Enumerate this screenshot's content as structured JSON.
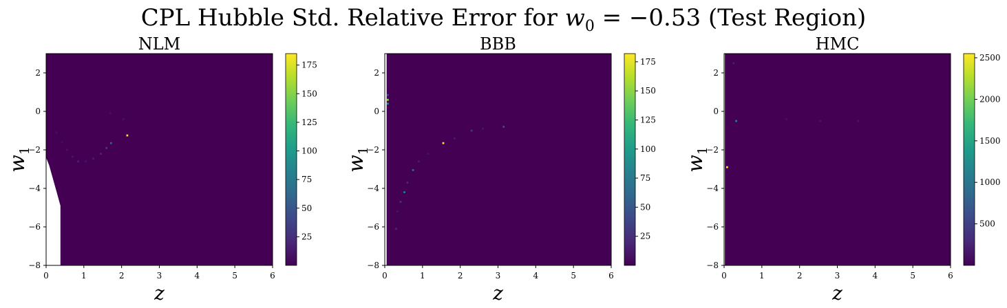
{
  "figure": {
    "title_prefix": "CPL Hubble Std. Relative Error for ",
    "title_var": "w",
    "title_sub": "0",
    "title_value": " = −0.53 ",
    "title_suffix": "(Test Region)"
  },
  "colors": {
    "background": "#440154",
    "viridis": [
      "#440154",
      "#482878",
      "#3e4989",
      "#31688e",
      "#26828e",
      "#1f9e89",
      "#35b779",
      "#6ece58",
      "#b5de2b",
      "#fde725"
    ]
  },
  "chart_data": [
    {
      "type": "heatmap",
      "title": "NLM",
      "xlabel": "z",
      "ylabel": "w1",
      "xlim": [
        0,
        6
      ],
      "ylim": [
        -8,
        3
      ],
      "xticks": [
        0,
        1,
        2,
        3,
        4,
        5,
        6
      ],
      "yticks": [
        -8,
        -6,
        -4,
        -2,
        0,
        2
      ],
      "colorbar": {
        "min": 0,
        "max": 185,
        "ticks": [
          25,
          50,
          75,
          100,
          125,
          150,
          175
        ]
      },
      "missing_region": [
        [
          0.0,
          -8.0
        ],
        [
          0.38,
          -8.0
        ],
        [
          0.38,
          -4.9
        ],
        [
          0.28,
          -4.2
        ],
        [
          0.18,
          -3.5
        ],
        [
          0.08,
          -2.8
        ],
        [
          0.0,
          -2.4
        ]
      ],
      "points": [
        {
          "z": 0.27,
          "w1": -1.1,
          "value": 8
        },
        {
          "z": 0.42,
          "w1": -1.6,
          "value": 6
        },
        {
          "z": 0.55,
          "w1": -2.0,
          "value": 10
        },
        {
          "z": 0.7,
          "w1": -2.35,
          "value": 12
        },
        {
          "z": 0.85,
          "w1": -2.6,
          "value": 18
        },
        {
          "z": 1.05,
          "w1": -2.6,
          "value": 10
        },
        {
          "z": 1.25,
          "w1": -2.45,
          "value": 14
        },
        {
          "z": 1.45,
          "w1": -2.2,
          "value": 20
        },
        {
          "z": 1.6,
          "w1": -1.9,
          "value": 35
        },
        {
          "z": 1.72,
          "w1": -1.65,
          "value": 60
        },
        {
          "z": 1.7,
          "w1": -0.1,
          "value": 8
        },
        {
          "z": 2.05,
          "w1": -0.4,
          "value": 10
        },
        {
          "z": 2.15,
          "w1": -1.25,
          "value": 182
        }
      ]
    },
    {
      "type": "heatmap",
      "title": "BBB",
      "xlabel": "z",
      "ylabel": "w1",
      "xlim": [
        0,
        6
      ],
      "ylim": [
        -8,
        3
      ],
      "xticks": [
        0,
        1,
        2,
        3,
        4,
        5,
        6
      ],
      "yticks": [
        -8,
        -6,
        -4,
        -2,
        0,
        2
      ],
      "colorbar": {
        "min": 0,
        "max": 182,
        "ticks": [
          25,
          50,
          75,
          100,
          125,
          150,
          175
        ]
      },
      "missing_region": [
        [
          0.0,
          -8.0
        ],
        [
          0.05,
          -8.0
        ],
        [
          0.05,
          3.0
        ],
        [
          0.0,
          3.0
        ]
      ],
      "points": [
        {
          "z": 0.08,
          "w1": 0.6,
          "value": 150
        },
        {
          "z": 0.08,
          "w1": 0.4,
          "value": 90
        },
        {
          "z": 0.08,
          "w1": 0.85,
          "value": 40
        },
        {
          "z": 0.3,
          "w1": -6.1,
          "value": 20
        },
        {
          "z": 0.33,
          "w1": -5.2,
          "value": 10
        },
        {
          "z": 0.42,
          "w1": -4.7,
          "value": 25
        },
        {
          "z": 0.52,
          "w1": -4.2,
          "value": 70
        },
        {
          "z": 0.6,
          "w1": -3.7,
          "value": 20
        },
        {
          "z": 0.75,
          "w1": -3.05,
          "value": 60
        },
        {
          "z": 0.9,
          "w1": -2.6,
          "value": 15
        },
        {
          "z": 1.15,
          "w1": -2.2,
          "value": 10
        },
        {
          "z": 1.55,
          "w1": -1.65,
          "value": 180
        },
        {
          "z": 1.85,
          "w1": -1.4,
          "value": 15
        },
        {
          "z": 2.3,
          "w1": -1.0,
          "value": 30
        },
        {
          "z": 2.6,
          "w1": -0.9,
          "value": 12
        },
        {
          "z": 3.15,
          "w1": -0.8,
          "value": 45
        }
      ]
    },
    {
      "type": "heatmap",
      "title": "HMC",
      "xlabel": "z",
      "ylabel": "w1",
      "xlim": [
        0,
        6
      ],
      "ylim": [
        -8,
        3
      ],
      "xticks": [
        0,
        1,
        2,
        3,
        4,
        5,
        6
      ],
      "yticks": [
        -8,
        -6,
        -4,
        -2,
        0,
        2
      ],
      "colorbar": {
        "min": 0,
        "max": 2550,
        "ticks": [
          500,
          1000,
          1500,
          2000,
          2500
        ]
      },
      "missing_region": [
        [
          0.0,
          -8.0
        ],
        [
          0.02,
          -8.0
        ],
        [
          0.02,
          3.0
        ],
        [
          0.0,
          3.0
        ]
      ],
      "points": [
        {
          "z": 0.08,
          "w1": -2.9,
          "value": 2520
        },
        {
          "z": 0.32,
          "w1": -0.5,
          "value": 1050
        },
        {
          "z": 0.25,
          "w1": 2.5,
          "value": 200
        },
        {
          "z": 1.65,
          "w1": -0.4,
          "value": 120
        },
        {
          "z": 2.55,
          "w1": -0.5,
          "value": 150
        },
        {
          "z": 3.55,
          "w1": -0.5,
          "value": 160
        }
      ]
    }
  ]
}
